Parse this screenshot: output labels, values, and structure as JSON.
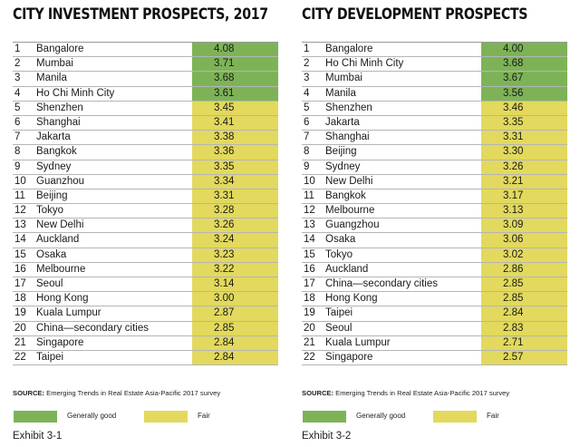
{
  "colors": {
    "good": "#7db356",
    "fair": "#e2d95e"
  },
  "source": {
    "label": "SOURCE:",
    "text": " Emerging Trends in Real Estate Asia-Pacific 2017 survey"
  },
  "legend": {
    "good": "Generally good",
    "fair": "Fair"
  },
  "chart_data": [
    {
      "type": "table",
      "title": "CITY INVESTMENT PROSPECTS, 2017",
      "exhibit": "Exhibit 3-1",
      "rows": [
        {
          "rank": "1",
          "city": "Bangalore",
          "score": "4.08",
          "rating": "good"
        },
        {
          "rank": "2",
          "city": "Mumbai",
          "score": "3.71",
          "rating": "good"
        },
        {
          "rank": "3",
          "city": "Manila",
          "score": "3.68",
          "rating": "good"
        },
        {
          "rank": "4",
          "city": "Ho Chi Minh City",
          "score": "3.61",
          "rating": "good"
        },
        {
          "rank": "5",
          "city": "Shenzhen",
          "score": "3.45",
          "rating": "fair"
        },
        {
          "rank": "6",
          "city": "Shanghai",
          "score": "3.41",
          "rating": "fair"
        },
        {
          "rank": "7",
          "city": "Jakarta",
          "score": "3.38",
          "rating": "fair"
        },
        {
          "rank": "8",
          "city": "Bangkok",
          "score": "3.36",
          "rating": "fair"
        },
        {
          "rank": "9",
          "city": "Sydney",
          "score": "3.35",
          "rating": "fair"
        },
        {
          "rank": "10",
          "city": "Guanzhou",
          "score": "3.34",
          "rating": "fair"
        },
        {
          "rank": "11",
          "city": "Beijing",
          "score": "3.31",
          "rating": "fair"
        },
        {
          "rank": "12",
          "city": "Tokyo",
          "score": "3.28",
          "rating": "fair"
        },
        {
          "rank": "13",
          "city": "New Delhi",
          "score": "3.26",
          "rating": "fair"
        },
        {
          "rank": "14",
          "city": "Auckland",
          "score": "3.24",
          "rating": "fair"
        },
        {
          "rank": "15",
          "city": "Osaka",
          "score": "3.23",
          "rating": "fair"
        },
        {
          "rank": "16",
          "city": "Melbourne",
          "score": "3.22",
          "rating": "fair"
        },
        {
          "rank": "17",
          "city": "Seoul",
          "score": "3.14",
          "rating": "fair"
        },
        {
          "rank": "18",
          "city": "Hong Kong",
          "score": "3.00",
          "rating": "fair"
        },
        {
          "rank": "19",
          "city": "Kuala Lumpur",
          "score": "2.87",
          "rating": "fair"
        },
        {
          "rank": "20",
          "city": "China—secondary cities",
          "score": "2.85",
          "rating": "fair"
        },
        {
          "rank": "21",
          "city": "Singapore",
          "score": "2.84",
          "rating": "fair"
        },
        {
          "rank": "22",
          "city": "Taipei",
          "score": "2.84",
          "rating": "fair"
        }
      ]
    },
    {
      "type": "table",
      "title": "CITY DEVELOPMENT PROSPECTS",
      "exhibit": "Exhibit 3-2",
      "rows": [
        {
          "rank": "1",
          "city": "Bangalore",
          "score": "4.00",
          "rating": "good"
        },
        {
          "rank": "2",
          "city": "Ho Chi Minh City",
          "score": "3.68",
          "rating": "good"
        },
        {
          "rank": "3",
          "city": "Mumbai",
          "score": "3.67",
          "rating": "good"
        },
        {
          "rank": "4",
          "city": "Manila",
          "score": "3.56",
          "rating": "good"
        },
        {
          "rank": "5",
          "city": "Shenzhen",
          "score": "3.46",
          "rating": "fair"
        },
        {
          "rank": "6",
          "city": "Jakarta",
          "score": "3.35",
          "rating": "fair"
        },
        {
          "rank": "7",
          "city": "Shanghai",
          "score": "3.31",
          "rating": "fair"
        },
        {
          "rank": "8",
          "city": "Beijing",
          "score": "3.30",
          "rating": "fair"
        },
        {
          "rank": "9",
          "city": "Sydney",
          "score": "3.26",
          "rating": "fair"
        },
        {
          "rank": "10",
          "city": "New Delhi",
          "score": "3.21",
          "rating": "fair"
        },
        {
          "rank": "11",
          "city": "Bangkok",
          "score": "3.17",
          "rating": "fair"
        },
        {
          "rank": "12",
          "city": "Melbourne",
          "score": "3.13",
          "rating": "fair"
        },
        {
          "rank": "13",
          "city": "Guangzhou",
          "score": "3.09",
          "rating": "fair"
        },
        {
          "rank": "14",
          "city": "Osaka",
          "score": "3.06",
          "rating": "fair"
        },
        {
          "rank": "15",
          "city": "Tokyo",
          "score": "3.02",
          "rating": "fair"
        },
        {
          "rank": "16",
          "city": "Auckland",
          "score": "2.86",
          "rating": "fair"
        },
        {
          "rank": "17",
          "city": "China—secondary cities",
          "score": "2.85",
          "rating": "fair"
        },
        {
          "rank": "18",
          "city": "Hong Kong",
          "score": "2.85",
          "rating": "fair"
        },
        {
          "rank": "19",
          "city": "Taipei",
          "score": "2.84",
          "rating": "fair"
        },
        {
          "rank": "20",
          "city": "Seoul",
          "score": "2.83",
          "rating": "fair"
        },
        {
          "rank": "21",
          "city": "Kuala Lumpur",
          "score": "2.71",
          "rating": "fair"
        },
        {
          "rank": "22",
          "city": "Singapore",
          "score": "2.57",
          "rating": "fair"
        }
      ]
    }
  ]
}
